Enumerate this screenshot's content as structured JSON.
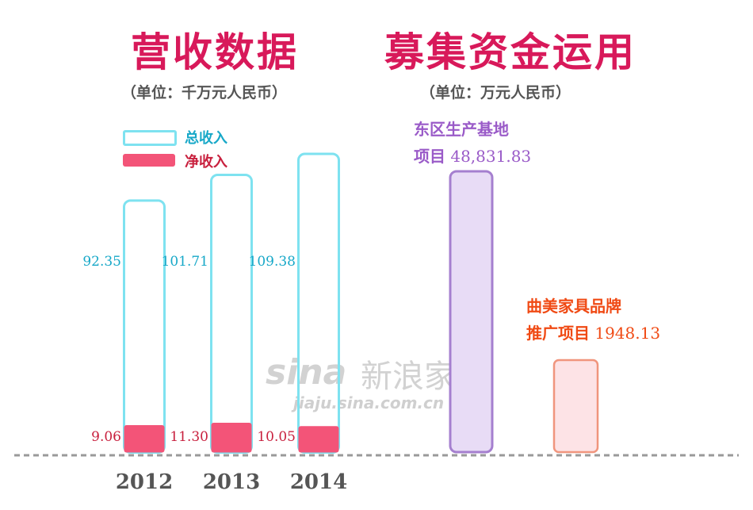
{
  "colors": {
    "title": "#d8195a",
    "total_outline": "#7ee2f0",
    "total_label": "#17a8c8",
    "net_fill": "#f35478",
    "net_label": "#c8203e",
    "dongqu_fill": "#e8dcf6",
    "dongqu_stroke": "#a57fcf",
    "dongqu_label": "#9a5bc8",
    "brand_fill": "#fde3e6",
    "brand_stroke": "#f0957d",
    "brand_label": "#f04a14",
    "baseline": "#9a9a9a",
    "watermark": "#d2d2d2"
  },
  "left_panel": {
    "title": "营收数据",
    "unit": "（单位：千万元人民币）",
    "legend": {
      "total": "总收入",
      "net": "净收入"
    }
  },
  "right_panel": {
    "title": "募集资金运用",
    "unit": "（单位：万元人民币）"
  },
  "watermark": {
    "brand": "sina",
    "cn": "新浪家居",
    "url": "jiaju.sina.com.cn"
  },
  "chart_data": [
    {
      "type": "bar",
      "categories": [
        "2012",
        "2013",
        "2014"
      ],
      "series": [
        {
          "name": "总收入",
          "values": [
            92.35,
            101.71,
            109.38
          ],
          "labels": [
            "92.35",
            "101.71",
            "109.38"
          ]
        },
        {
          "name": "净收入",
          "values": [
            9.06,
            11.3,
            10.05
          ],
          "labels": [
            "9.06",
            "11.30",
            "10.05"
          ]
        }
      ],
      "ylim": [
        0,
        125
      ]
    },
    {
      "type": "bar",
      "categories": [
        "东区生产基地项目",
        "曲美家具品牌推广项目"
      ],
      "values": [
        48831.83,
        1948.13
      ],
      "annotations": [
        {
          "line1": "东区生产基地",
          "line2": "项目",
          "value": "48,831.83"
        },
        {
          "line1": "曲美家具品牌",
          "line2": "推广项目",
          "value": "1948.13"
        }
      ]
    }
  ]
}
